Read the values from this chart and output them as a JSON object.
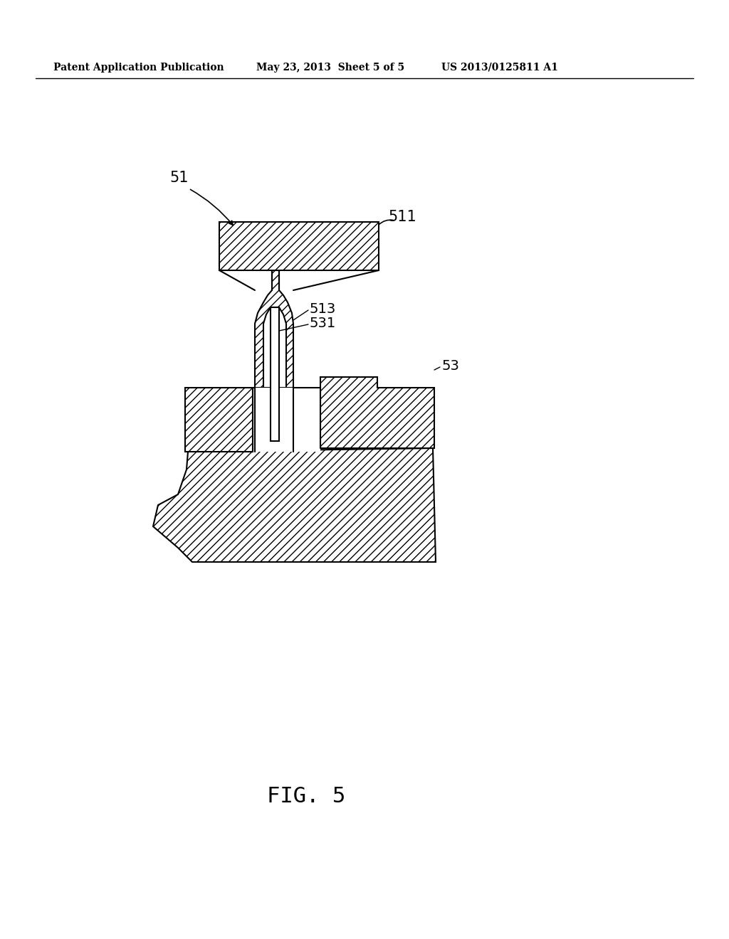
{
  "background_color": "#ffffff",
  "header_left": "Patent Application Publication",
  "header_center": "May 23, 2013  Sheet 5 of 5",
  "header_right": "US 2013/0125811 A1",
  "fig_label": "FIG. 5",
  "label_51": "51",
  "label_511": "511",
  "label_513": "513",
  "label_531": "531",
  "label_53": "53",
  "line_color": "#000000",
  "line_width": 1.5
}
